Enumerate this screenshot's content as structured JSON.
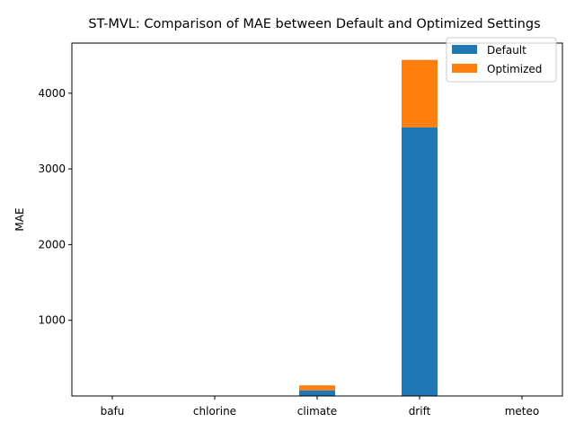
{
  "chart_data": {
    "type": "bar",
    "stacked": true,
    "title": "ST-MVL: Comparison of MAE between Default and Optimized Settings",
    "xlabel": "",
    "ylabel": "MAE",
    "categories": [
      "bafu",
      "chlorine",
      "climate",
      "drift",
      "meteo"
    ],
    "series": [
      {
        "name": "Default",
        "color": "#1f77b4",
        "values": [
          0.5,
          0.1,
          75,
          3550,
          0.5
        ]
      },
      {
        "name": "Optimized",
        "color": "#ff7f0e",
        "values": [
          0.5,
          0.1,
          65,
          890,
          0.5
        ]
      }
    ],
    "y_ticks": [
      1000,
      2000,
      3000,
      4000
    ],
    "ylim": [
      0,
      4662
    ],
    "grid": false,
    "legend_position": "top-right"
  }
}
